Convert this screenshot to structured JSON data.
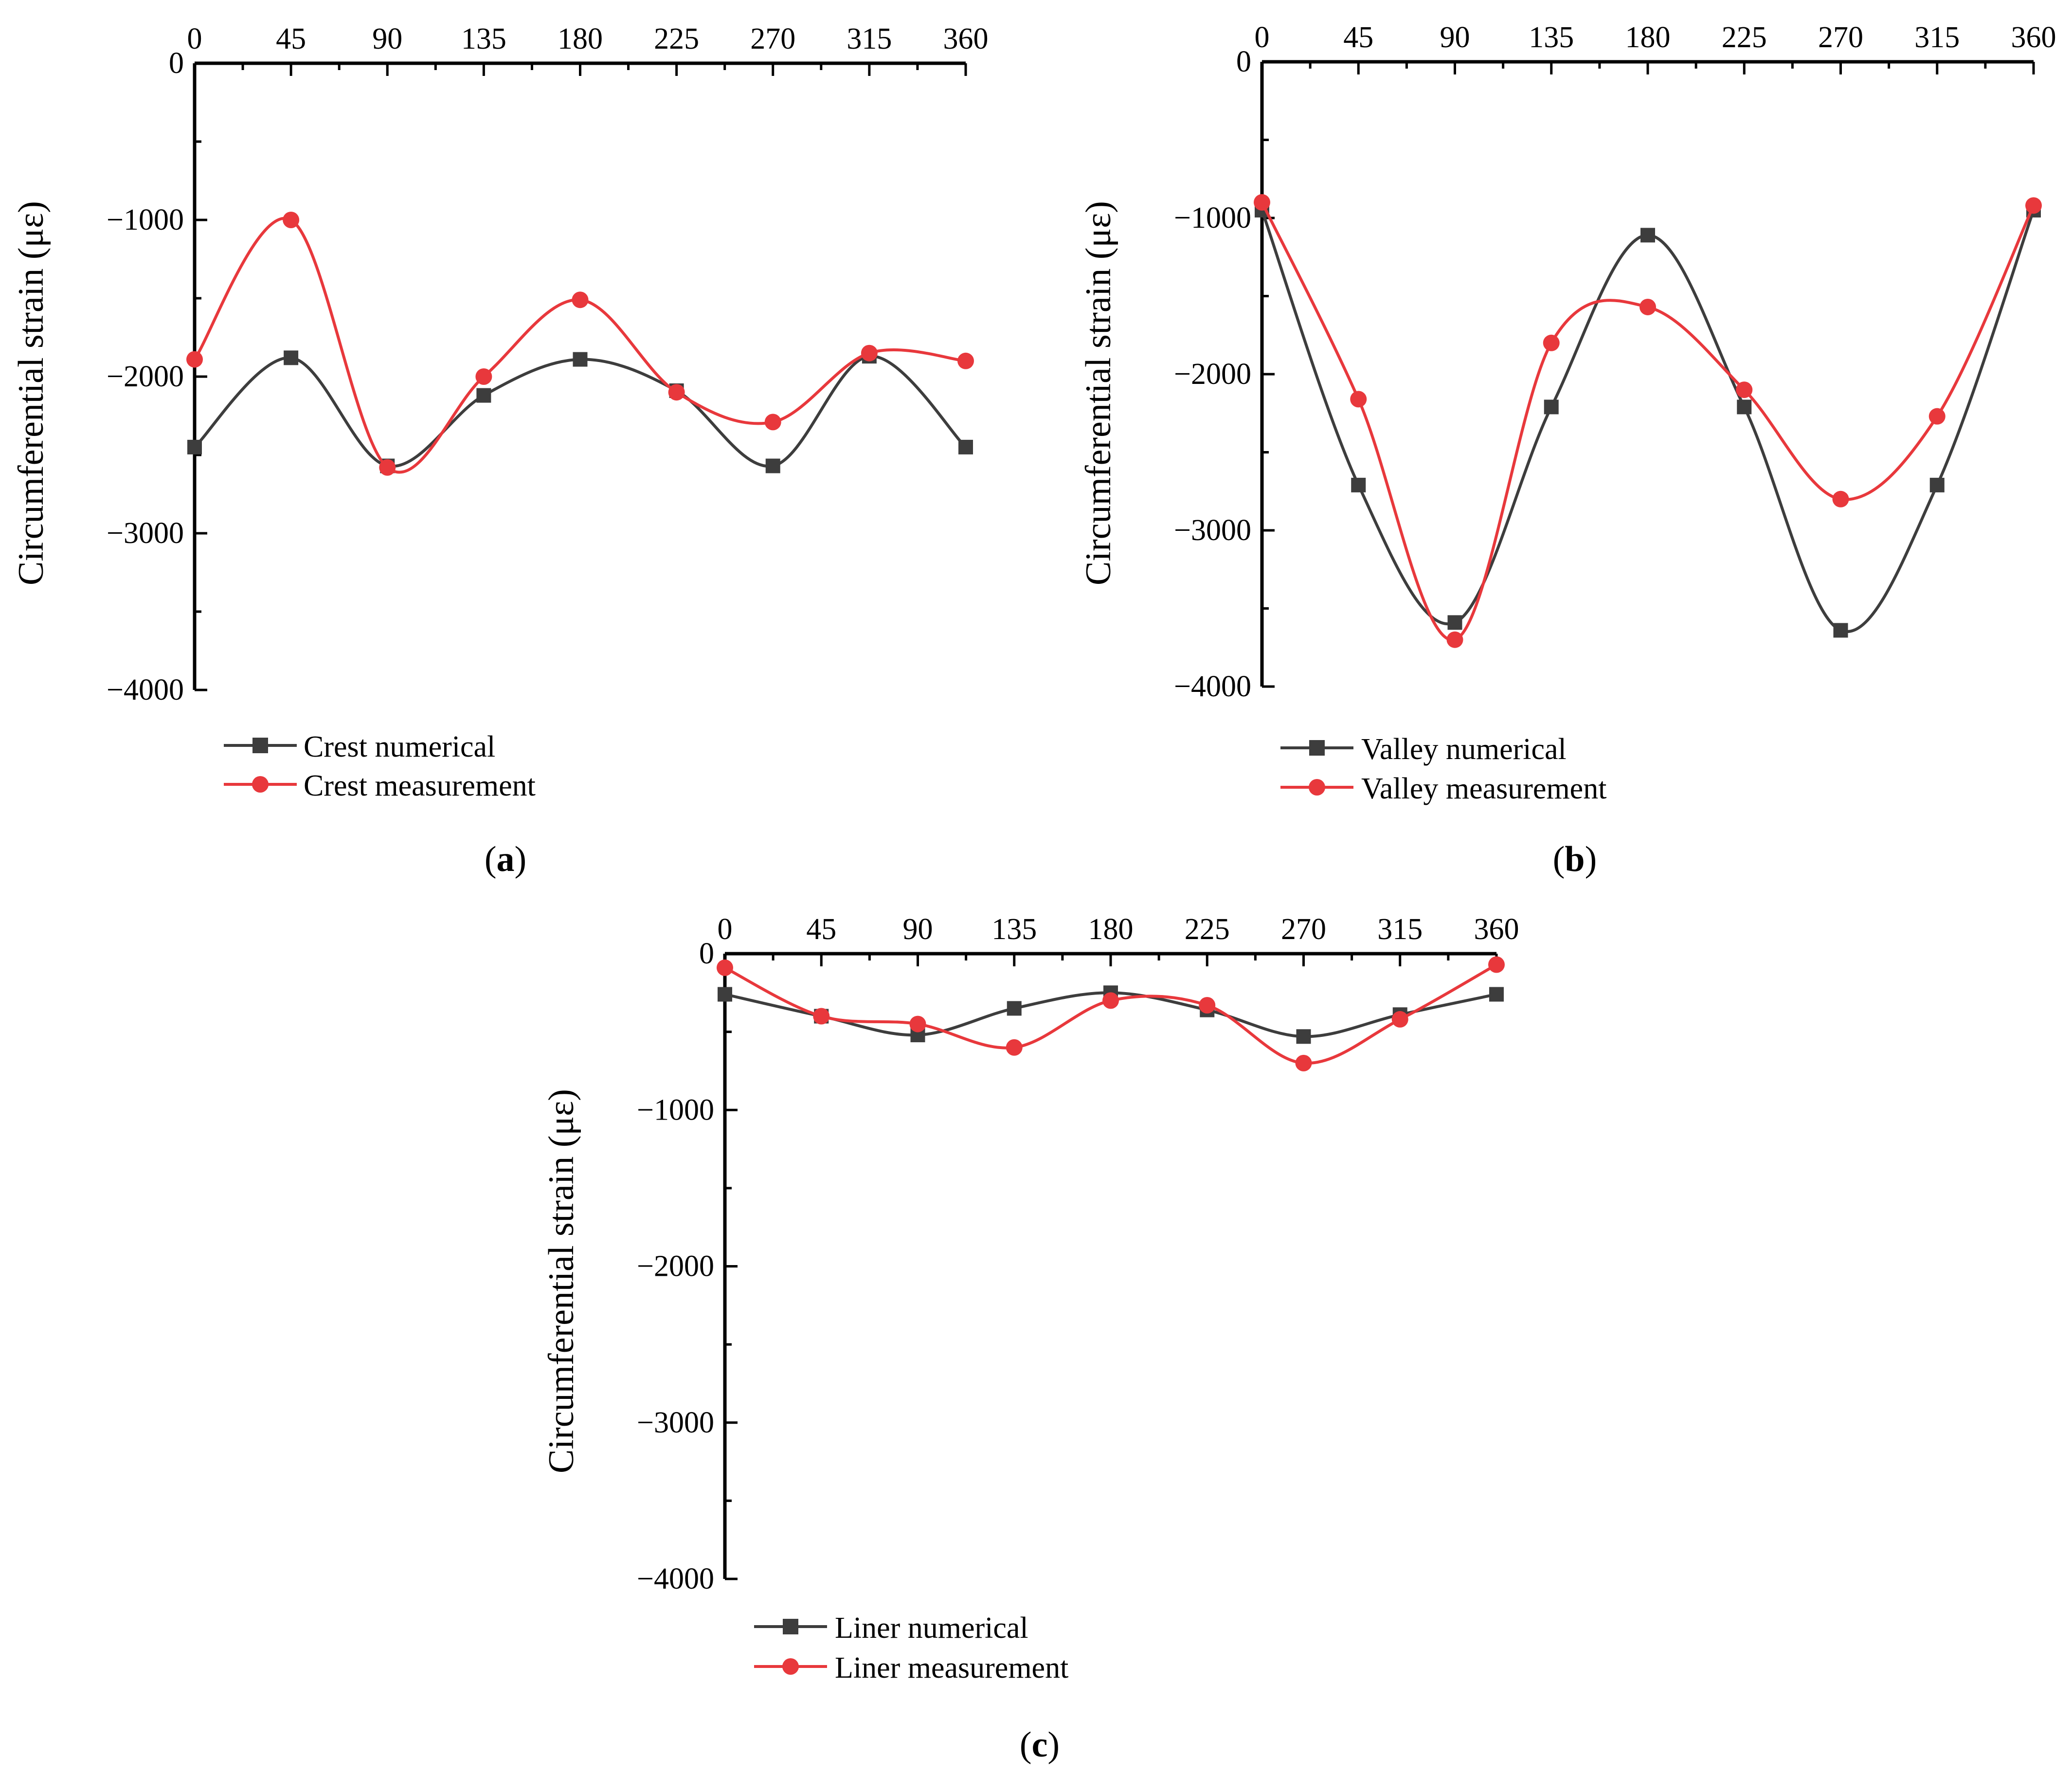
{
  "colors": {
    "numerical": "#3d3d3d",
    "measurement": "#e8383c",
    "axis": "#000000"
  },
  "chart_data": [
    {
      "id": "a",
      "type": "line",
      "panel_label": "a",
      "xlabel": "",
      "ylabel": "Circumferential strain (με)",
      "x_axis_position": "top",
      "xlim": [
        0,
        360
      ],
      "ylim": [
        -4000,
        0
      ],
      "xticks": [
        "0",
        "45",
        "90",
        "135",
        "180",
        "225",
        "270",
        "315",
        "360"
      ],
      "yticks": [
        "0",
        "−1000",
        "−2000",
        "−3000",
        "−4000"
      ],
      "x": [
        0,
        45,
        90,
        135,
        180,
        225,
        270,
        315,
        360
      ],
      "legend_position": "bottom-left",
      "series": [
        {
          "name": "Crest numerical",
          "marker": "square",
          "color": "#3d3d3d",
          "values": [
            -2450,
            -1880,
            -2570,
            -2120,
            -1890,
            -2090,
            -2570,
            -1870,
            -2450
          ]
        },
        {
          "name": "Crest measurement",
          "marker": "circle",
          "color": "#e8383c",
          "values": [
            -1890,
            -1000,
            -2580,
            -2000,
            -1510,
            -2100,
            -2290,
            -1850,
            -1900
          ]
        }
      ]
    },
    {
      "id": "b",
      "type": "line",
      "panel_label": "b",
      "xlabel": "",
      "ylabel": "Circumferential strain (με)",
      "x_axis_position": "top",
      "xlim": [
        0,
        360
      ],
      "ylim": [
        -4000,
        0
      ],
      "xticks": [
        "0",
        "45",
        "90",
        "135",
        "180",
        "225",
        "270",
        "315",
        "360"
      ],
      "yticks": [
        "0",
        "−1000",
        "−2000",
        "−3000",
        "−4000"
      ],
      "x": [
        0,
        45,
        90,
        135,
        180,
        225,
        270,
        315,
        360
      ],
      "legend_position": "bottom-left",
      "series": [
        {
          "name": "Valley numerical",
          "marker": "square",
          "color": "#3d3d3d",
          "values": [
            -950,
            -2710,
            -3590,
            -2210,
            -1110,
            -2210,
            -3640,
            -2710,
            -950
          ]
        },
        {
          "name": "Valley measurement",
          "marker": "circle",
          "color": "#e8383c",
          "values": [
            -900,
            -2160,
            -3700,
            -1800,
            -1570,
            -2100,
            -2800,
            -2270,
            -920
          ]
        }
      ]
    },
    {
      "id": "c",
      "type": "line",
      "panel_label": "c",
      "xlabel": "",
      "ylabel": "Circumferential strain (με)",
      "x_axis_position": "top",
      "xlim": [
        0,
        360
      ],
      "ylim": [
        -4000,
        0
      ],
      "xticks": [
        "0",
        "45",
        "90",
        "135",
        "180",
        "225",
        "270",
        "315",
        "360"
      ],
      "yticks": [
        "0",
        "−1000",
        "−2000",
        "−3000",
        "−4000"
      ],
      "x": [
        0,
        45,
        90,
        135,
        180,
        225,
        270,
        315,
        360
      ],
      "legend_position": "bottom-left",
      "series": [
        {
          "name": "Liner numerical",
          "marker": "square",
          "color": "#3d3d3d",
          "values": [
            -260,
            -400,
            -520,
            -350,
            -250,
            -360,
            -530,
            -390,
            -260
          ]
        },
        {
          "name": "Liner measurement",
          "marker": "circle",
          "color": "#e8383c",
          "values": [
            -90,
            -400,
            -450,
            -600,
            -300,
            -330,
            -700,
            -420,
            -70
          ]
        }
      ]
    }
  ]
}
